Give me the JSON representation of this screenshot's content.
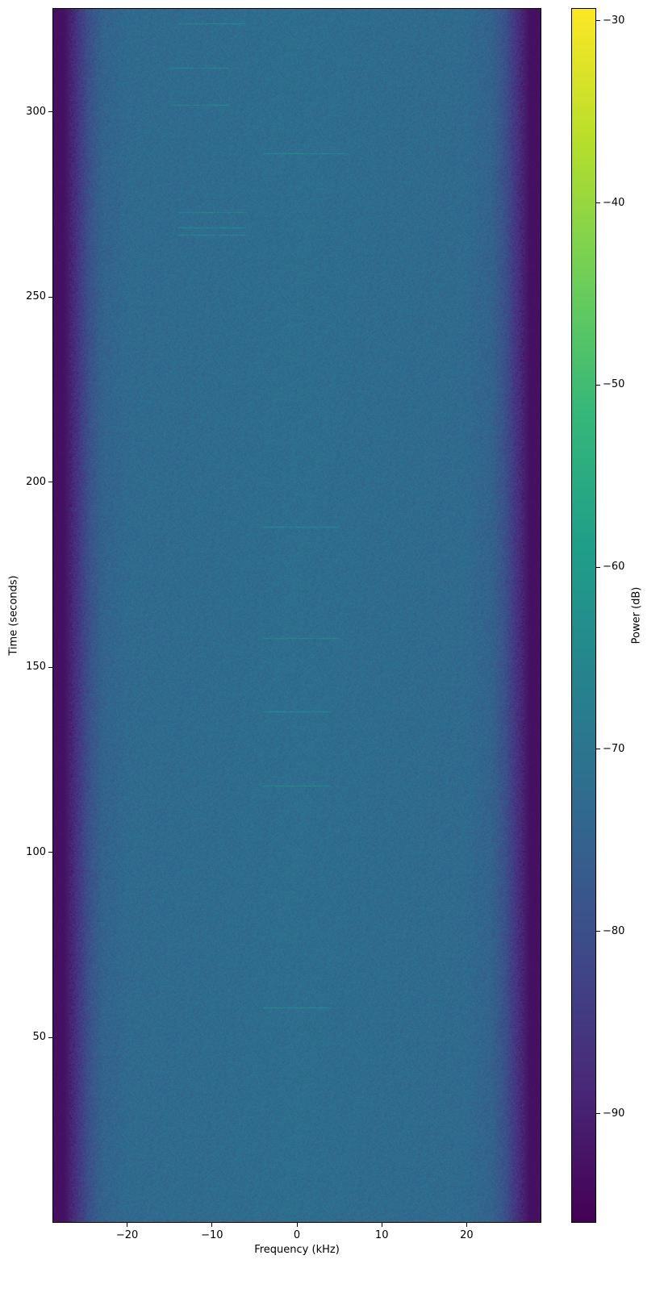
{
  "chart_data": {
    "type": "heatmap",
    "title": "",
    "xlabel": "Frequency (kHz)",
    "ylabel": "Time (seconds)",
    "xlim": [
      -28.8,
      28.8
    ],
    "ylim": [
      0,
      328
    ],
    "xticks": [
      -20,
      -10,
      0,
      10,
      20
    ],
    "xtick_labels": [
      "−20",
      "−10",
      "0",
      "10",
      "20"
    ],
    "yticks": [
      50,
      100,
      150,
      200,
      250,
      300
    ],
    "ytick_labels": [
      "50",
      "100",
      "150",
      "200",
      "250",
      "300"
    ],
    "colorbar": {
      "label": "Power (dB)",
      "colormap": "viridis",
      "clim": [
        -96,
        -29.3
      ],
      "ticks": [
        -90,
        -80,
        -70,
        -60,
        -50,
        -40,
        -30
      ],
      "tick_labels": [
        "−90",
        "−80",
        "−70",
        "−60",
        "−50",
        "−40",
        "−30"
      ]
    },
    "noise_profile": {
      "frequency_khz": [
        -28.8,
        -27.5,
        -26,
        -24.5,
        -23,
        -20,
        0,
        20,
        23,
        24.5,
        26,
        27.5,
        28.8
      ],
      "power_db": [
        -93,
        -93,
        -86,
        -79,
        -75,
        -73,
        -72,
        -73,
        -75,
        -79,
        -86,
        -93,
        -93
      ]
    },
    "faint_lines": [
      {
        "time_s": 58,
        "freq_range_khz": [
          -4,
          4
        ]
      },
      {
        "time_s": 118,
        "freq_range_khz": [
          -4,
          4
        ]
      },
      {
        "time_s": 138,
        "freq_range_khz": [
          -4,
          4
        ]
      },
      {
        "time_s": 158,
        "freq_range_khz": [
          -4,
          5
        ]
      },
      {
        "time_s": 188,
        "freq_range_khz": [
          -4,
          5
        ]
      },
      {
        "time_s": 267,
        "freq_range_khz": [
          -14,
          -6
        ]
      },
      {
        "time_s": 269,
        "freq_range_khz": [
          -14,
          -6
        ]
      },
      {
        "time_s": 273,
        "freq_range_khz": [
          -14,
          -6
        ]
      },
      {
        "time_s": 289,
        "freq_range_khz": [
          -4,
          6
        ]
      },
      {
        "time_s": 302,
        "freq_range_khz": [
          -15,
          -8
        ]
      },
      {
        "time_s": 312,
        "freq_range_khz": [
          -15,
          -8
        ]
      },
      {
        "time_s": 324,
        "freq_range_khz": [
          -14,
          -6
        ]
      }
    ]
  }
}
